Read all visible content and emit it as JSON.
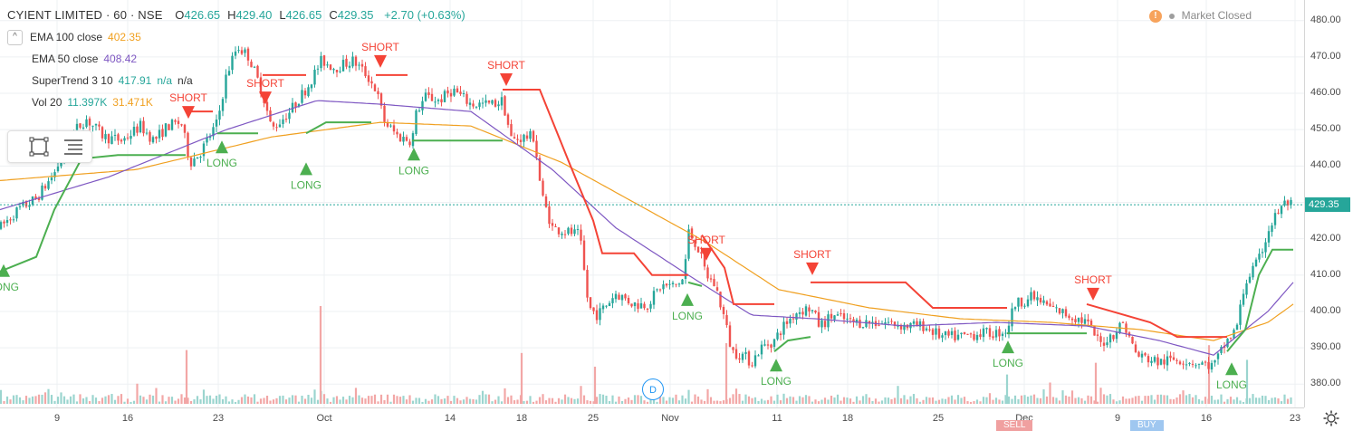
{
  "header": {
    "symbol": "CYIENT LIMITED · 60 · NSE",
    "ohlc": [
      {
        "label": "O",
        "value": "426.65"
      },
      {
        "label": "H",
        "value": "429.40"
      },
      {
        "label": "L",
        "value": "426.65"
      },
      {
        "label": "C",
        "value": "429.35"
      }
    ],
    "change": "+2.70 (+0.63%)"
  },
  "indicators": [
    {
      "name": "EMA 100 close",
      "values": [
        {
          "text": "402.35",
          "color": "#f0a020"
        }
      ]
    },
    {
      "name": "EMA 50 close",
      "values": [
        {
          "text": "408.42",
          "color": "#7e57c2"
        }
      ]
    },
    {
      "name": "SuperTrend 3 10",
      "values": [
        {
          "text": "417.91",
          "color": "#26a69a"
        },
        {
          "text": "n/a",
          "color": "#26a69a"
        },
        {
          "text": "n/a",
          "color": "#333333"
        }
      ]
    },
    {
      "name": "Vol 20",
      "values": [
        {
          "text": "11.397K",
          "color": "#26a69a"
        },
        {
          "text": "31.471K",
          "color": "#f0a020"
        }
      ]
    }
  ],
  "collapse_symbol": "^",
  "market_status": {
    "warn_glyph": "!",
    "text": "Market Closed"
  },
  "last_price": "429.35",
  "events_marker": "D",
  "bottom_tags": {
    "sell": "SELL",
    "buy": "BUY"
  },
  "colors": {
    "up": "#26a69a",
    "down": "#ef5350",
    "ema100": "#f0a020",
    "ema50": "#7e57c2",
    "st_up": "#4caf50",
    "st_down": "#f44336",
    "vol_up": "#9bd5cf",
    "vol_down": "#f2a7a6"
  },
  "chart_data": {
    "type": "candlestick",
    "symbol": "CYIENT LIMITED",
    "interval": "60",
    "exchange": "NSE",
    "y_axis": {
      "ticks": [
        "480.00",
        "470.00",
        "460.00",
        "450.00",
        "440.00",
        "430.00",
        "420.00",
        "410.00",
        "400.00",
        "390.00",
        "380.00"
      ],
      "range": [
        377,
        483
      ]
    },
    "x_axis": {
      "ticks": [
        "9",
        "16",
        "23",
        "Oct",
        "14",
        "18",
        "25",
        "Nov",
        "11",
        "18",
        "25",
        "Dec",
        "9",
        "16",
        "23"
      ]
    },
    "price_anchors": [
      [
        0,
        423
      ],
      [
        20,
        428
      ],
      [
        40,
        431
      ],
      [
        60,
        438
      ],
      [
        80,
        449
      ],
      [
        95,
        453
      ],
      [
        115,
        448
      ],
      [
        135,
        447
      ],
      [
        155,
        451
      ],
      [
        170,
        447
      ],
      [
        185,
        451
      ],
      [
        200,
        452
      ],
      [
        210,
        441
      ],
      [
        222,
        444
      ],
      [
        240,
        452
      ],
      [
        250,
        465
      ],
      [
        262,
        473
      ],
      [
        275,
        470
      ],
      [
        290,
        460
      ],
      [
        300,
        450
      ],
      [
        320,
        455
      ],
      [
        340,
        462
      ],
      [
        355,
        469
      ],
      [
        370,
        467
      ],
      [
        390,
        469
      ],
      [
        405,
        465
      ],
      [
        415,
        461
      ],
      [
        425,
        452
      ],
      [
        440,
        448
      ],
      [
        455,
        447
      ],
      [
        460,
        455
      ],
      [
        470,
        459
      ],
      [
        485,
        458
      ],
      [
        500,
        461
      ],
      [
        520,
        457
      ],
      [
        545,
        457
      ],
      [
        555,
        458
      ],
      [
        565,
        447
      ],
      [
        580,
        448
      ],
      [
        590,
        448
      ],
      [
        598,
        432
      ],
      [
        610,
        423
      ],
      [
        625,
        422
      ],
      [
        640,
        421
      ],
      [
        650,
        401
      ],
      [
        660,
        399
      ],
      [
        680,
        405
      ],
      [
        700,
        402
      ],
      [
        715,
        402
      ],
      [
        730,
        407
      ],
      [
        745,
        407
      ],
      [
        755,
        409
      ],
      [
        760,
        422
      ],
      [
        770,
        418
      ],
      [
        780,
        410
      ],
      [
        790,
        407
      ],
      [
        800,
        398
      ],
      [
        808,
        389
      ],
      [
        820,
        388
      ],
      [
        830,
        386
      ],
      [
        840,
        390
      ],
      [
        855,
        392
      ],
      [
        865,
        396
      ],
      [
        880,
        400
      ],
      [
        895,
        401
      ],
      [
        905,
        396
      ],
      [
        920,
        399
      ],
      [
        940,
        397
      ],
      [
        960,
        397
      ],
      [
        980,
        397
      ],
      [
        1000,
        396
      ],
      [
        1020,
        396
      ],
      [
        1040,
        393
      ],
      [
        1060,
        393
      ],
      [
        1080,
        394
      ],
      [
        1100,
        394
      ],
      [
        1112,
        395
      ],
      [
        1120,
        402
      ],
      [
        1140,
        404
      ],
      [
        1160,
        401
      ],
      [
        1180,
        399
      ],
      [
        1200,
        397
      ],
      [
        1215,
        391
      ],
      [
        1230,
        394
      ],
      [
        1240,
        397
      ],
      [
        1255,
        388
      ],
      [
        1280,
        386
      ],
      [
        1300,
        387
      ],
      [
        1320,
        386
      ],
      [
        1340,
        385
      ],
      [
        1355,
        392
      ],
      [
        1365,
        395
      ],
      [
        1375,
        408
      ],
      [
        1390,
        414
      ],
      [
        1400,
        422
      ],
      [
        1410,
        427
      ],
      [
        1420,
        430
      ],
      [
        1428,
        429
      ]
    ],
    "ema100": [
      [
        0,
        436
      ],
      [
        150,
        439
      ],
      [
        300,
        448
      ],
      [
        420,
        452
      ],
      [
        520,
        451
      ],
      [
        620,
        441
      ],
      [
        700,
        430
      ],
      [
        780,
        419
      ],
      [
        860,
        406
      ],
      [
        960,
        401
      ],
      [
        1060,
        398
      ],
      [
        1160,
        397
      ],
      [
        1260,
        395
      ],
      [
        1340,
        392
      ],
      [
        1400,
        397
      ],
      [
        1428,
        402
      ]
    ],
    "ema50": [
      [
        0,
        428
      ],
      [
        120,
        437
      ],
      [
        250,
        450
      ],
      [
        350,
        458
      ],
      [
        420,
        457
      ],
      [
        520,
        455
      ],
      [
        610,
        439
      ],
      [
        680,
        423
      ],
      [
        760,
        410
      ],
      [
        830,
        399
      ],
      [
        900,
        398
      ],
      [
        1000,
        396
      ],
      [
        1100,
        397
      ],
      [
        1200,
        396
      ],
      [
        1280,
        392
      ],
      [
        1340,
        388
      ],
      [
        1400,
        400
      ],
      [
        1428,
        408
      ]
    ],
    "supertrend_segments": [
      {
        "dir": "up",
        "points": [
          [
            0,
            411
          ],
          [
            40,
            415
          ],
          [
            60,
            428
          ],
          [
            90,
            442
          ],
          [
            130,
            443
          ],
          [
            205,
            443
          ]
        ]
      },
      {
        "dir": "down",
        "points": [
          [
            205,
            455
          ],
          [
            235,
            455
          ]
        ]
      },
      {
        "dir": "up",
        "points": [
          [
            240,
            449
          ],
          [
            285,
            449
          ]
        ]
      },
      {
        "dir": "down",
        "points": [
          [
            290,
            465
          ],
          [
            338,
            465
          ]
        ]
      },
      {
        "dir": "up",
        "points": [
          [
            338,
            449
          ],
          [
            360,
            452
          ],
          [
            410,
            452
          ]
        ]
      },
      {
        "dir": "down",
        "points": [
          [
            415,
            465
          ],
          [
            450,
            465
          ]
        ]
      },
      {
        "dir": "up",
        "points": [
          [
            455,
            447
          ],
          [
            555,
            447
          ]
        ]
      },
      {
        "dir": "down",
        "points": [
          [
            555,
            461
          ],
          [
            596,
            461
          ],
          [
            630,
            440
          ],
          [
            655,
            425
          ],
          [
            665,
            416
          ],
          [
            700,
            416
          ],
          [
            720,
            410
          ],
          [
            760,
            410
          ]
        ]
      },
      {
        "dir": "up",
        "points": [
          [
            760,
            408
          ],
          [
            775,
            407
          ]
        ]
      },
      {
        "dir": "down",
        "points": [
          [
            775,
            421
          ],
          [
            800,
            412
          ],
          [
            810,
            402
          ],
          [
            855,
            402
          ]
        ]
      },
      {
        "dir": "up",
        "points": [
          [
            855,
            389
          ],
          [
            870,
            392
          ],
          [
            895,
            393
          ]
        ]
      },
      {
        "dir": "down",
        "points": [
          [
            895,
            408
          ],
          [
            1000,
            408
          ],
          [
            1030,
            401
          ],
          [
            1112,
            401
          ]
        ]
      },
      {
        "dir": "up",
        "points": [
          [
            1112,
            394
          ],
          [
            1200,
            394
          ]
        ]
      },
      {
        "dir": "down",
        "points": [
          [
            1200,
            402
          ],
          [
            1270,
            397
          ],
          [
            1300,
            393
          ],
          [
            1355,
            393
          ]
        ]
      },
      {
        "dir": "up",
        "points": [
          [
            1355,
            389
          ],
          [
            1375,
            395
          ],
          [
            1390,
            410
          ],
          [
            1405,
            417
          ],
          [
            1428,
            417
          ]
        ]
      }
    ],
    "signals": [
      {
        "type": "LONG",
        "x": 4,
        "price": 413
      },
      {
        "type": "SHORT",
        "x": 208,
        "price": 453
      },
      {
        "type": "LONG",
        "x": 245,
        "price": 447
      },
      {
        "type": "SHORT",
        "x": 293,
        "price": 457
      },
      {
        "type": "LONG",
        "x": 338,
        "price": 441
      },
      {
        "type": "SHORT",
        "x": 420,
        "price": 467
      },
      {
        "type": "LONG",
        "x": 457,
        "price": 445
      },
      {
        "type": "SHORT",
        "x": 559,
        "price": 462
      },
      {
        "type": "LONG",
        "x": 759,
        "price": 405
      },
      {
        "type": "SHORT",
        "x": 780,
        "price": 414
      },
      {
        "type": "LONG",
        "x": 857,
        "price": 387
      },
      {
        "type": "SHORT",
        "x": 897,
        "price": 410
      },
      {
        "type": "LONG",
        "x": 1113,
        "price": 392
      },
      {
        "type": "SHORT",
        "x": 1207,
        "price": 403
      },
      {
        "type": "LONG",
        "x": 1360,
        "price": 386
      }
    ],
    "volume_spikes": [
      {
        "x": 206,
        "value": 0.55,
        "dir": "down"
      },
      {
        "x": 354,
        "value": 1.0,
        "dir": "down"
      },
      {
        "x": 576,
        "value": 0.52,
        "dir": "down"
      },
      {
        "x": 657,
        "value": 0.38,
        "dir": "down"
      },
      {
        "x": 802,
        "value": 0.62,
        "dir": "down"
      },
      {
        "x": 1112,
        "value": 0.3,
        "dir": "up"
      },
      {
        "x": 1210,
        "value": 0.42,
        "dir": "down"
      },
      {
        "x": 1335,
        "value": 0.6,
        "dir": "down"
      },
      {
        "x": 1377,
        "value": 0.45,
        "dir": "up"
      }
    ]
  }
}
